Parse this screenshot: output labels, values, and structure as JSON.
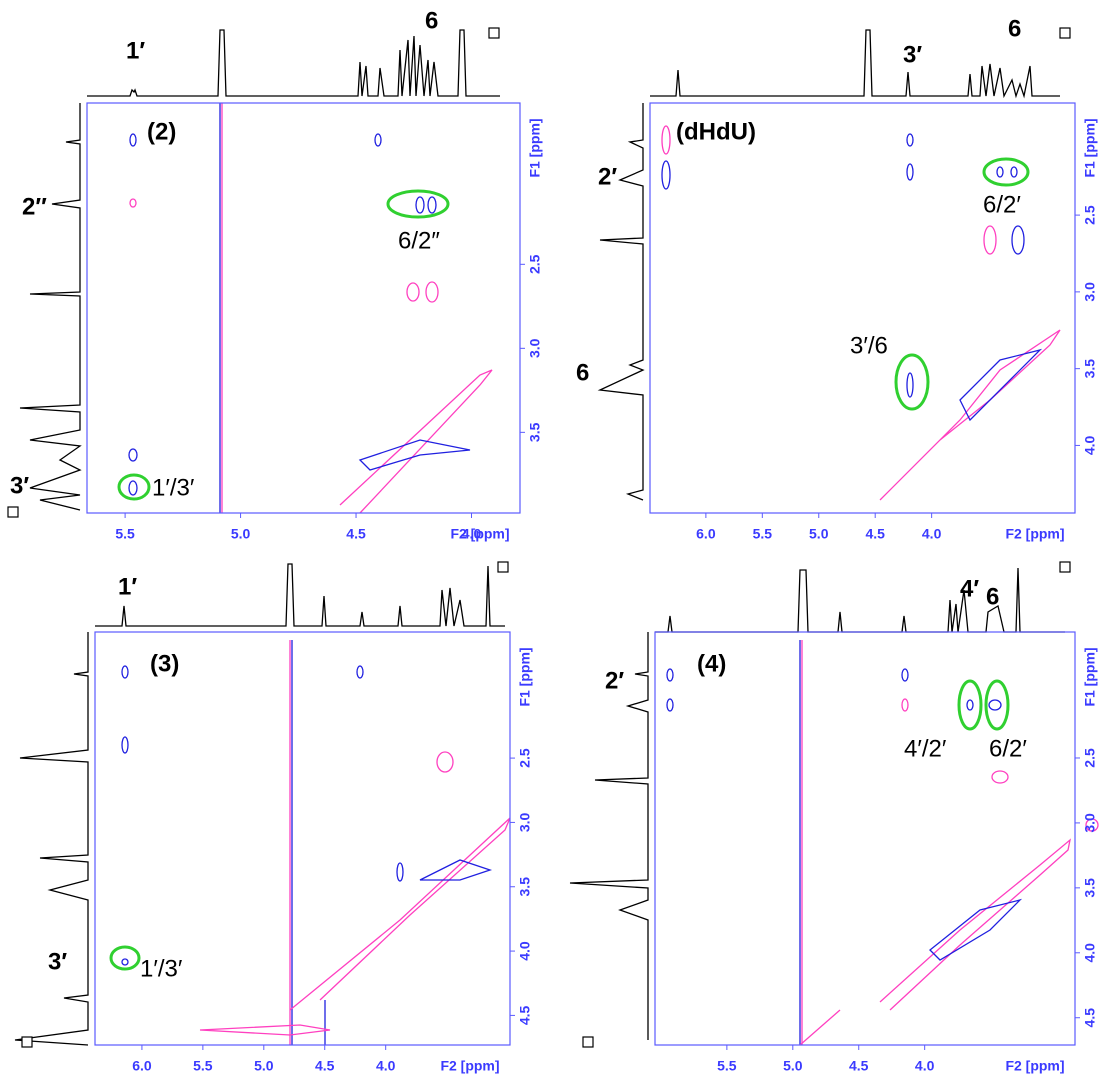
{
  "panels": [
    {
      "label": "(2)",
      "x_axis_label": "F2 [ppm]",
      "y_axis_label": "F1 [ppm]",
      "xlim": [
        5.665,
        3.79
      ],
      "ylim": [
        1.54,
        3.98
      ],
      "xticks": [
        5.5,
        {
          "value": 5,
          "label": "5.0"
        },
        4.5,
        {
          "value": 4,
          "label": "4.0"
        }
      ],
      "yticks": [
        2.5,
        {
          "value": 3,
          "label": "3.0"
        },
        3.5
      ],
      "annotations": [
        "1′",
        "6",
        "2″",
        "3′",
        "6/2″",
        "1′/3′"
      ]
    },
    {
      "label": "(dHdU)",
      "x_axis_label": "F2 [ppm]",
      "y_axis_label": "F1 [ppm]",
      "xlim": [
        6.495,
        2.73
      ],
      "ylim": [
        1.77,
        4.44
      ],
      "xticks": [
        {
          "value": 6,
          "label": "6.0"
        },
        5.5,
        {
          "value": 5,
          "label": "5.0"
        },
        4.5,
        {
          "value": 4,
          "label": "4.0"
        }
      ],
      "yticks": [
        2.5,
        {
          "value": 3,
          "label": "3.0"
        },
        3.5,
        {
          "value": 4,
          "label": "4.0"
        }
      ],
      "annotations": [
        "3′",
        "6",
        "2′",
        "6",
        "3′/6",
        "6/2′"
      ]
    },
    {
      "label": "(3)",
      "x_axis_label": "F2 [ppm]",
      "y_axis_label": "F1 [ppm]",
      "xlim": [
        6.385,
        2.98
      ],
      "ylim": [
        1.52,
        4.73
      ],
      "xticks": [
        {
          "value": 6,
          "label": "6.0"
        },
        5.5,
        {
          "value": 5,
          "label": "5.0"
        },
        4.5,
        {
          "value": 4,
          "label": "4.0"
        }
      ],
      "yticks": [
        2.5,
        {
          "value": 3,
          "label": "3.0"
        },
        3.5,
        {
          "value": 4,
          "label": "4.0"
        },
        4.5
      ],
      "annotations": [
        "1′",
        "3′",
        "1′/3′"
      ]
    },
    {
      "label": "(4)",
      "x_axis_label": "F2 [ppm]",
      "y_axis_label": "F1 [ppm]",
      "xlim": [
        6.045,
        2.86
      ],
      "ylim": [
        1.53,
        4.71
      ],
      "xticks": [
        5.5,
        {
          "value": 5,
          "label": "5.0"
        },
        4.5,
        {
          "value": 4,
          "label": "4.0"
        }
      ],
      "yticks": [
        2.5,
        {
          "value": 3,
          "label": "3.0"
        },
        3.5,
        {
          "value": 4,
          "label": "4.0"
        },
        4.5
      ],
      "annotations": [
        "4′",
        "6",
        "2′",
        "4′/2′",
        "6/2′"
      ]
    }
  ]
}
